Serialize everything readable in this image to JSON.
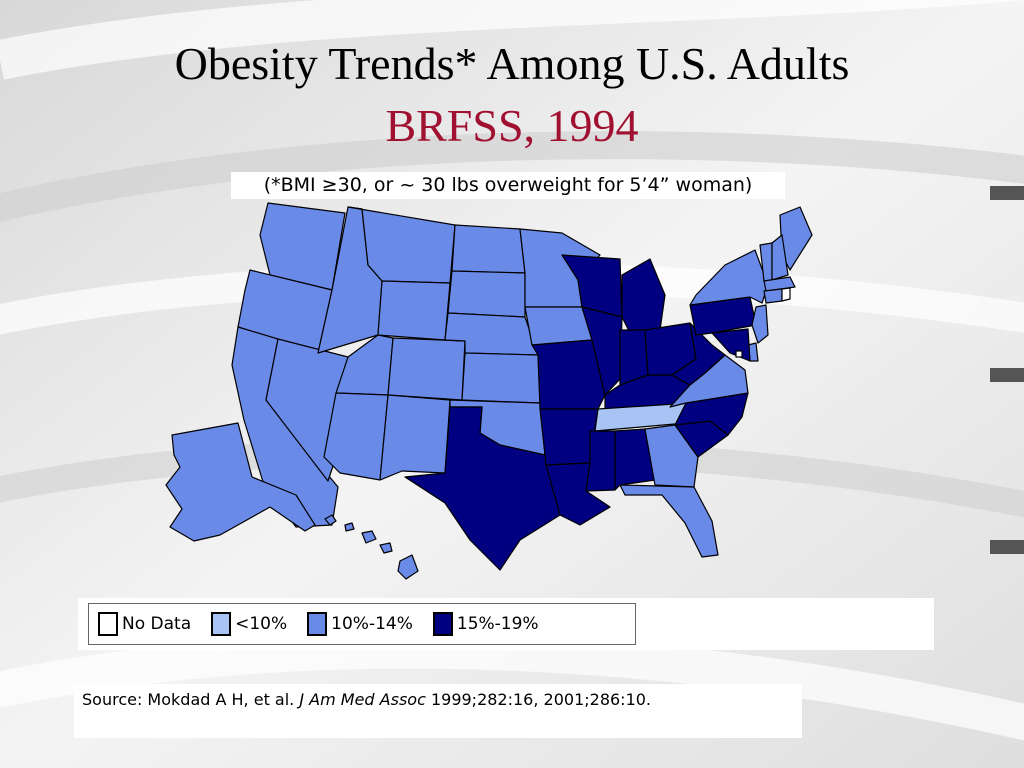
{
  "slide": {
    "title": "Obesity Trends* Among U.S. Adults",
    "subtitle": "BRFSS, 1994",
    "note": "(*BMI ≥30, or ~ 30 lbs overweight for 5’4” woman)"
  },
  "colors": {
    "no_data": "#ffffff",
    "lt10": "#a7c4f5",
    "10_14": "#6a8ae8",
    "15_19": "#000080",
    "title": "#000000",
    "subtitle": "#a01030"
  },
  "legend": [
    {
      "label": "No Data",
      "category": "no_data"
    },
    {
      "label": "<10%",
      "category": "lt10"
    },
    {
      "label": "10%-14%",
      "category": "10_14"
    },
    {
      "label": "15%-19%",
      "category": "15_19"
    }
  ],
  "states": {
    "WA": "10_14",
    "OR": "10_14",
    "CA": "10_14",
    "NV": "10_14",
    "ID": "10_14",
    "MT": "10_14",
    "WY": "10_14",
    "UT": "10_14",
    "AZ": "10_14",
    "CO": "10_14",
    "NM": "10_14",
    "ND": "10_14",
    "SD": "10_14",
    "NE": "10_14",
    "KS": "10_14",
    "OK": "10_14",
    "TX": "15_19",
    "MN": "10_14",
    "IA": "10_14",
    "MO": "15_19",
    "AR": "15_19",
    "LA": "15_19",
    "WI": "15_19",
    "IL": "15_19",
    "MI": "15_19",
    "IN": "15_19",
    "OH": "15_19",
    "KY": "15_19",
    "TN": "lt10",
    "MS": "15_19",
    "AL": "15_19",
    "GA": "10_14",
    "FL": "10_14",
    "SC": "15_19",
    "NC": "15_19",
    "VA": "10_14",
    "WV": "15_19",
    "PA": "15_19",
    "NY": "10_14",
    "ME": "10_14",
    "VT": "10_14",
    "NH": "10_14",
    "MA": "10_14",
    "CT": "10_14",
    "RI": "no_data",
    "NJ": "10_14",
    "DE": "10_14",
    "MD": "15_19",
    "DC": "no_data",
    "AK": "10_14",
    "HI": "10_14"
  },
  "source": {
    "prefix": "Source: Mokdad A H, et al. ",
    "journal": "J Am Med Assoc",
    "suffix": " 1999;282:16, 2001;286:10."
  }
}
